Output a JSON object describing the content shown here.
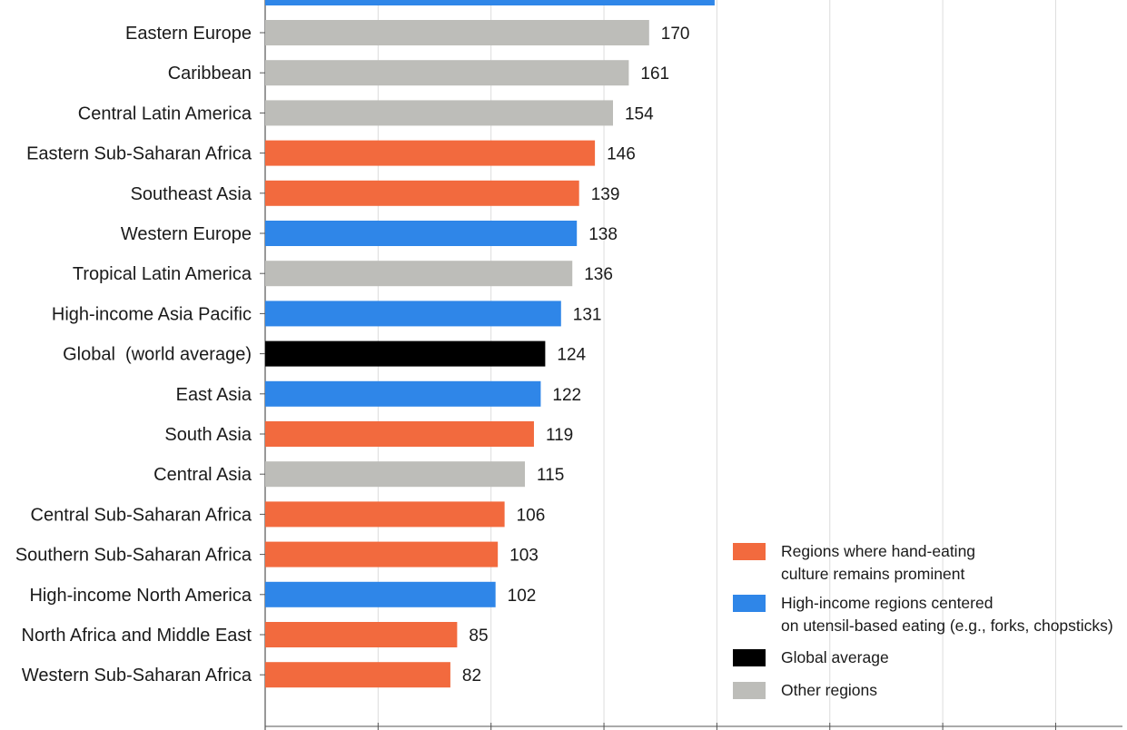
{
  "chart_data": {
    "type": "bar",
    "orientation": "horizontal",
    "categories": [
      "Eastern Europe",
      "Caribbean",
      "Central Latin America",
      "Eastern Sub-Saharan Africa",
      "Southeast Asia",
      "Western Europe",
      "Tropical Latin America",
      "High-income Asia Pacific",
      "Global  (world average)",
      "East Asia",
      "South Asia",
      "Central Asia",
      "Central Sub-Saharan Africa",
      "Southern Sub-Saharan Africa",
      "High-income North America",
      "North Africa and Middle East",
      "Western Sub-Saharan Africa"
    ],
    "values": [
      170,
      161,
      154,
      146,
      139,
      138,
      136,
      131,
      124,
      122,
      119,
      115,
      106,
      103,
      102,
      85,
      82
    ],
    "groups": [
      "other",
      "other",
      "other",
      "hand",
      "hand",
      "utensil",
      "other",
      "utensil",
      "global",
      "utensil",
      "hand",
      "other",
      "hand",
      "hand",
      "utensil",
      "hand",
      "hand"
    ],
    "top_partial_bar": {
      "value": 199,
      "group": "utensil"
    },
    "colors": {
      "hand": "#f26a3e",
      "utensil": "#2f86e8",
      "global": "#000000",
      "other": "#bdbdb9"
    },
    "xlim": [
      0,
      380
    ],
    "grid": true,
    "legend_position": "bottom-right",
    "legend": [
      {
        "group": "hand",
        "lines": [
          "Regions where hand-eating",
          "culture remains prominent"
        ]
      },
      {
        "group": "utensil",
        "lines": [
          "High-income regions centered",
          "on utensil-based eating (e.g., forks, chopsticks)"
        ]
      },
      {
        "group": "global",
        "lines": [
          "Global average"
        ]
      },
      {
        "group": "other",
        "lines": [
          "Other regions"
        ]
      }
    ]
  }
}
